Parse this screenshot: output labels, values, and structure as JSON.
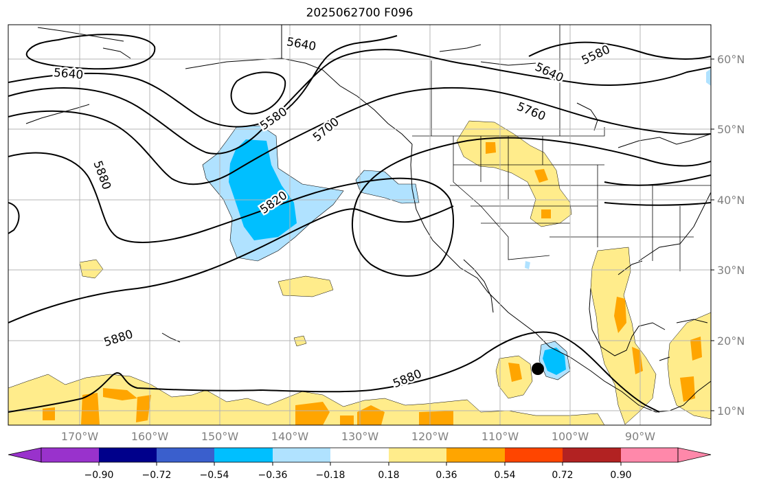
{
  "title": "2025062700 F096",
  "lat_labels": [
    "60°N",
    "50°N",
    "40°N",
    "30°N",
    "20°N",
    "10°N"
  ],
  "lon_labels": [
    "170°W",
    "160°W",
    "150°W",
    "140°W",
    "130°W",
    "120°W",
    "110°W",
    "100°W",
    "90°W"
  ],
  "contour_labels": [
    "5640",
    "5580",
    "5640",
    "5580",
    "5640",
    "5700",
    "5760",
    "5820",
    "5880",
    "5880",
    "5880"
  ],
  "colorbar": {
    "labels": [
      "−0.90",
      "−0.72",
      "−0.54",
      "−0.36",
      "−0.18",
      "0.18",
      "0.36",
      "0.54",
      "0.72",
      "0.90"
    ],
    "colors": [
      "#9932cc",
      "#00008b",
      "#3a5fcd",
      "#00bfff",
      "#b0e2ff",
      "#ffffff",
      "#ffec8b",
      "#ffa500",
      "#ff4500",
      "#b22222",
      "#ff88aa"
    ]
  },
  "marker": "storm-center-dot"
}
